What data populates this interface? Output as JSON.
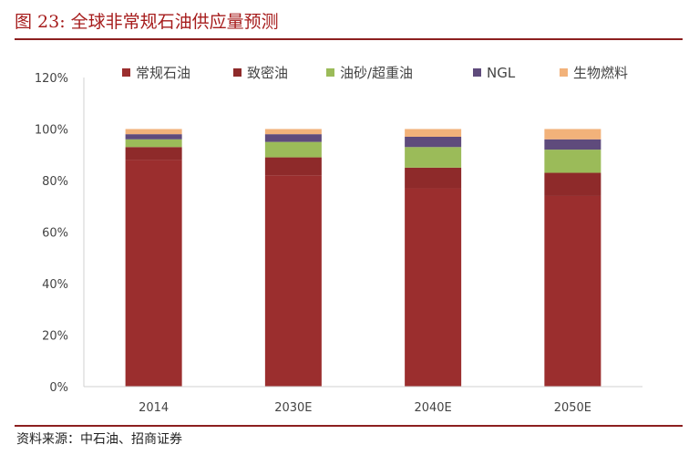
{
  "figure": {
    "title": "图 23:  全球非常规石油供应量预测",
    "source": "资料来源：中石油、招商证券"
  },
  "chart_data": {
    "type": "bar",
    "stacked": true,
    "categories": [
      "2014",
      "2030E",
      "2040E",
      "2050E"
    ],
    "series": [
      {
        "name": "常规石油",
        "color": "#9b2e2e",
        "values": [
          88,
          82,
          77,
          74
        ]
      },
      {
        "name": "致密油",
        "color": "#8e2a2a",
        "values": [
          5,
          7,
          8,
          9
        ]
      },
      {
        "name": "油砂/超重油",
        "color": "#9bbb59",
        "values": [
          3,
          6,
          8,
          9
        ]
      },
      {
        "name": "NGL",
        "color": "#5f4b7c",
        "values": [
          2,
          3,
          4,
          4
        ]
      },
      {
        "name": "生物燃料",
        "color": "#f2b27a",
        "values": [
          2,
          2,
          3,
          4
        ]
      }
    ],
    "yticks": [
      "0%",
      "20%",
      "40%",
      "60%",
      "80%",
      "100%",
      "120%"
    ],
    "ylim": [
      0,
      120
    ],
    "legend_position": "top",
    "grid": false
  }
}
